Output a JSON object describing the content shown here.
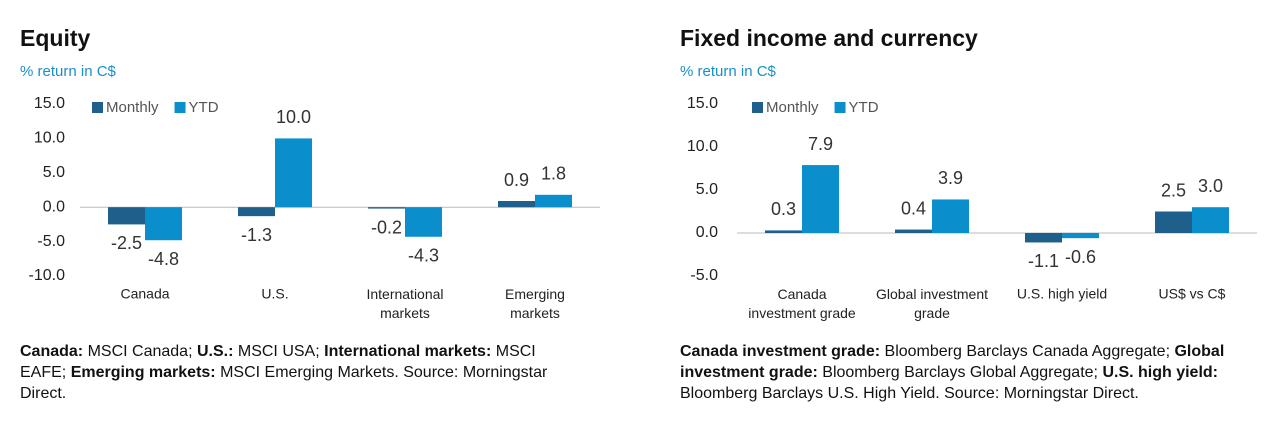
{
  "chart_data": [
    {
      "type": "bar",
      "title": "Equity",
      "subtitle": "% return in C$",
      "categories": [
        "Canada",
        "U.S.",
        "International markets",
        "Emerging markets"
      ],
      "series": [
        {
          "name": "Monthly",
          "color": "#1f5f8b",
          "values": [
            -2.5,
            -1.3,
            -0.2,
            0.9
          ],
          "value_labels": [
            "-2.5",
            "-1.3",
            "-0.2",
            "0.9"
          ]
        },
        {
          "name": "YTD",
          "color": "#0a8fcc",
          "values": [
            -4.8,
            10,
            -4.3,
            1.8
          ],
          "value_labels": [
            "-4.8",
            "10.0",
            "-4.3",
            "1.8"
          ]
        }
      ],
      "ylim": [
        -10,
        15
      ],
      "yticks": [
        {
          "value": -10,
          "label": "-10.0"
        },
        {
          "value": -5,
          "label": "-5.0"
        },
        {
          "value": 0,
          "label": "0.0"
        },
        {
          "value": 5,
          "label": "5.0"
        },
        {
          "value": 10,
          "label": "10.0"
        },
        {
          "value": 15,
          "label": "15.0"
        }
      ],
      "legend": "top-left",
      "grid": false,
      "notes": [
        {
          "text": "Canada:",
          "bold": true
        },
        {
          "text": "MSCI Canada;"
        },
        {
          "text": "U.S.:",
          "bold": true
        },
        {
          "text": "MSCI USA;"
        },
        {
          "text": "International markets:",
          "bold": true
        },
        {
          "text": "MSCI EAFE;"
        },
        {
          "text": "Emerging markets:",
          "bold": true
        },
        {
          "text": "MSCI Emerging Markets. Source: Morningstar Direct."
        }
      ]
    },
    {
      "type": "bar",
      "title": "Fixed income and currency",
      "subtitle": "% return in C$",
      "categories": [
        "Canada investment grade",
        "Global investment grade",
        "U.S. high yield",
        "US$ vs C$"
      ],
      "series": [
        {
          "name": "Monthly",
          "color": "#1f5f8b",
          "values": [
            0.3,
            0.4,
            -1.1,
            2.5
          ],
          "value_labels": [
            "0.3",
            "0.4",
            "-1.1",
            "2.5"
          ]
        },
        {
          "name": "YTD",
          "color": "#0a8fcc",
          "values": [
            7.9,
            3.9,
            -0.6,
            3
          ],
          "value_labels": [
            "7.9",
            "3.9",
            "-0.6",
            "3.0"
          ]
        }
      ],
      "ylim": [
        -5,
        15
      ],
      "yticks": [
        {
          "value": -5,
          "label": "-5.0"
        },
        {
          "value": 0,
          "label": "0.0"
        },
        {
          "value": 5,
          "label": "5.0"
        },
        {
          "value": 10,
          "label": "10.0"
        },
        {
          "value": 15,
          "label": "15.0"
        }
      ],
      "legend": "top-left",
      "grid": false,
      "notes": [
        {
          "text": "Canada investment grade:",
          "bold": true
        },
        {
          "text": "Bloomberg Barclays Canada Aggregate;"
        },
        {
          "text": "Global investment grade:",
          "bold": true
        },
        {
          "text": "Bloomberg Barclays Global Aggregate;"
        },
        {
          "text": "U.S. high yield:",
          "bold": true
        },
        {
          "text": "Bloomberg Barclays U.S. High Yield. Source: Morningstar Direct."
        }
      ]
    }
  ]
}
